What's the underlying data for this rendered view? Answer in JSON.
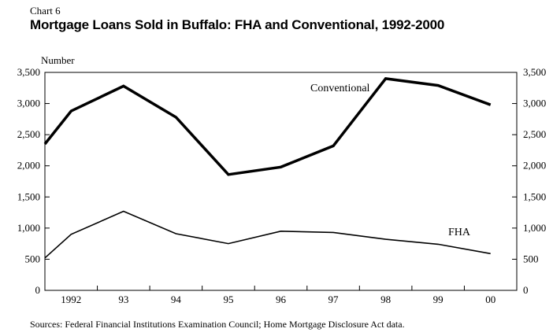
{
  "header": {
    "chart_number": "Chart 6",
    "title": "Mortgage Loans Sold in Buffalo: FHA and Conventional, 1992-2000"
  },
  "footer": {
    "source": "Sources: Federal Financial Institutions Examination Council; Home Mortgage Disclosure Act data."
  },
  "chart_data": {
    "type": "line",
    "title": "Mortgage Loans Sold in Buffalo: FHA and Conventional, 1992-2000",
    "ylabel": "Number",
    "xlabel": "",
    "ylim": [
      0,
      3500
    ],
    "yticks": [
      0,
      500,
      1000,
      1500,
      2000,
      2500,
      3000,
      3500
    ],
    "ytick_labels": [
      "0",
      "500",
      "1,000",
      "1,500",
      "2,000",
      "2,500",
      "3,000",
      "3,500"
    ],
    "grid": false,
    "categories": [
      "1992",
      "93",
      "94",
      "95",
      "96",
      "97",
      "98",
      "99",
      "00"
    ],
    "series": [
      {
        "name": "Conventional",
        "color": "#000000",
        "line_style": "thick",
        "x": [
          1992,
          1992.5,
          1993.5,
          1994.5,
          1995.5,
          1996.5,
          1997.5,
          1998.5,
          1999.5,
          2000.5
        ],
        "values": [
          2350,
          2880,
          3280,
          2780,
          1860,
          1980,
          2320,
          3400,
          3290,
          2980
        ]
      },
      {
        "name": "FHA",
        "color": "#000000",
        "line_style": "thin",
        "x": [
          1992,
          1992.5,
          1993.5,
          1994.5,
          1995.5,
          1996.5,
          1997.5,
          1998.5,
          1999.5,
          2000.5
        ],
        "values": [
          520,
          900,
          1270,
          910,
          750,
          950,
          930,
          820,
          740,
          590
        ]
      }
    ]
  }
}
